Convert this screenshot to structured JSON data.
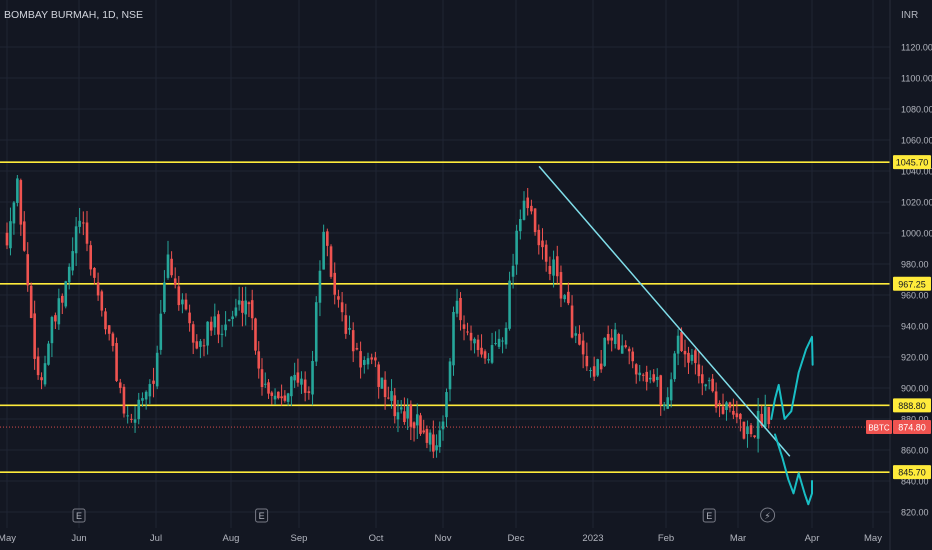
{
  "header": {
    "symbol_title": "BOMBAY BURMAH, 1D, NSE",
    "currency": "INR"
  },
  "chart_data": {
    "type": "candlestick",
    "title": "BOMBAY BURMAH, 1D, NSE",
    "ylim": [
      815,
      1130
    ],
    "y_ticks": [
      820,
      840,
      860,
      880,
      900,
      920,
      940,
      960,
      980,
      1000,
      1020,
      1040,
      1060,
      1080,
      1100,
      1120
    ],
    "x_ticks": [
      "May",
      "Jun",
      "Jul",
      "Aug",
      "Sep",
      "Oct",
      "Nov",
      "Dec",
      "2023",
      "Feb",
      "Mar",
      "Apr",
      "May"
    ],
    "horizontal_levels": [
      {
        "value": 1045.7,
        "label": "1045.70"
      },
      {
        "value": 967.25,
        "label": "967.25"
      },
      {
        "value": 888.8,
        "label": "888.80"
      },
      {
        "value": 845.7,
        "label": "845.70"
      }
    ],
    "trendline": {
      "start": [
        7.3,
        1043
      ],
      "end": [
        10.7,
        856
      ]
    },
    "last_price": {
      "symbol": "BBTC",
      "value": "874.80",
      "numeric": 874.8
    },
    "earnings_markers": [
      1.0,
      3.45,
      9.6
    ],
    "dividend_markers": [
      10.4
    ],
    "marker_glyphs": {
      "earnings": "E",
      "dividend": "⚡"
    },
    "price_path": [
      [
        0.0,
        1000
      ],
      [
        0.15,
        1030
      ],
      [
        0.3,
        960
      ],
      [
        0.45,
        900
      ],
      [
        0.6,
        935
      ],
      [
        0.8,
        960
      ],
      [
        1.0,
        1010
      ],
      [
        1.2,
        970
      ],
      [
        1.45,
        920
      ],
      [
        1.65,
        870
      ],
      [
        1.8,
        895
      ],
      [
        2.0,
        910
      ],
      [
        2.15,
        985
      ],
      [
        2.35,
        950
      ],
      [
        2.55,
        925
      ],
      [
        2.75,
        940
      ],
      [
        3.0,
        945
      ],
      [
        3.25,
        960
      ],
      [
        3.45,
        905
      ],
      [
        3.7,
        895
      ],
      [
        3.9,
        905
      ],
      [
        4.15,
        900
      ],
      [
        4.3,
        1000
      ],
      [
        4.5,
        955
      ],
      [
        4.75,
        920
      ],
      [
        5.0,
        910
      ],
      [
        5.3,
        885
      ],
      [
        5.55,
        880
      ],
      [
        5.75,
        870
      ],
      [
        5.85,
        865
      ],
      [
        6.0,
        872
      ],
      [
        6.15,
        955
      ],
      [
        6.3,
        935
      ],
      [
        6.55,
        915
      ],
      [
        6.85,
        940
      ],
      [
        7.0,
        1000
      ],
      [
        7.1,
        1025
      ],
      [
        7.3,
        990
      ],
      [
        7.55,
        970
      ],
      [
        7.85,
        920
      ],
      [
        8.0,
        900
      ],
      [
        8.2,
        935
      ],
      [
        8.4,
        925
      ],
      [
        8.6,
        915
      ],
      [
        8.85,
        905
      ],
      [
        9.0,
        885
      ],
      [
        9.15,
        935
      ],
      [
        9.3,
        920
      ],
      [
        9.55,
        905
      ],
      [
        9.75,
        890
      ],
      [
        9.95,
        880
      ],
      [
        10.15,
        870
      ],
      [
        10.3,
        880
      ],
      [
        10.4,
        889
      ],
      [
        10.45,
        875
      ]
    ]
  },
  "colors": {
    "background": "#131722",
    "grid": "#1f2433",
    "up": "#26a69a",
    "down": "#ef5350",
    "level": "#ffeb3b",
    "trendline": "#80deea",
    "projection": "#19bec4",
    "axis_text": "#b2b5be"
  }
}
